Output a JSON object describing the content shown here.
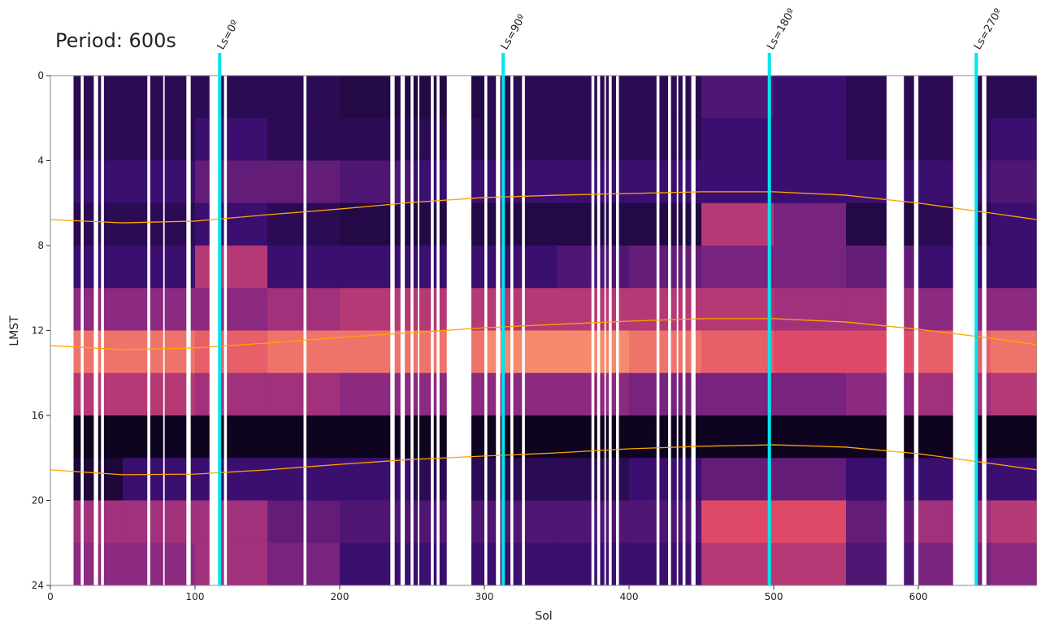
{
  "chart_data": {
    "type": "heatmap",
    "title": "Period: 600s",
    "xlabel": "Sol",
    "ylabel": "LMST",
    "xlim": [
      0,
      682
    ],
    "ylim": [
      0,
      24
    ],
    "y_inverted": true,
    "xticks": [
      0,
      100,
      200,
      300,
      400,
      500,
      600
    ],
    "yticks": [
      0,
      4,
      8,
      12,
      16,
      20,
      24
    ],
    "colormap": "magma",
    "x_bins": [
      0,
      50,
      100,
      150,
      200,
      250,
      300,
      350,
      400,
      450,
      500,
      550,
      600,
      650,
      682
    ],
    "y_bins": [
      0,
      2,
      4,
      6,
      8,
      10,
      12,
      14,
      16,
      18,
      20,
      22,
      24
    ],
    "z": [
      [
        0.15,
        0.15,
        0.15,
        0.15,
        0.12,
        0.12,
        0.15,
        0.15,
        0.15,
        0.25,
        0.2,
        0.15,
        0.15,
        0.15
      ],
      [
        0.15,
        0.15,
        0.2,
        0.15,
        0.15,
        0.15,
        0.15,
        0.15,
        0.15,
        0.2,
        0.2,
        0.15,
        0.15,
        0.2
      ],
      [
        0.2,
        0.2,
        0.3,
        0.3,
        0.25,
        0.2,
        0.2,
        0.2,
        0.2,
        0.2,
        0.2,
        0.2,
        0.2,
        0.25
      ],
      [
        0.15,
        0.15,
        0.2,
        0.15,
        0.12,
        0.12,
        0.12,
        0.12,
        0.12,
        0.5,
        0.35,
        0.12,
        0.15,
        0.2
      ],
      [
        0.2,
        0.2,
        0.5,
        0.2,
        0.2,
        0.2,
        0.2,
        0.25,
        0.3,
        0.35,
        0.35,
        0.3,
        0.2,
        0.2
      ],
      [
        0.4,
        0.4,
        0.4,
        0.45,
        0.5,
        0.5,
        0.5,
        0.5,
        0.5,
        0.5,
        0.45,
        0.45,
        0.4,
        0.4
      ],
      [
        0.7,
        0.7,
        0.65,
        0.7,
        0.7,
        0.7,
        0.75,
        0.75,
        0.7,
        0.65,
        0.6,
        0.6,
        0.65,
        0.7
      ],
      [
        0.5,
        0.5,
        0.45,
        0.45,
        0.4,
        0.4,
        0.4,
        0.4,
        0.35,
        0.35,
        0.35,
        0.4,
        0.45,
        0.5
      ],
      [
        0.05,
        0.05,
        0.05,
        0.05,
        0.05,
        0.05,
        0.05,
        0.05,
        0.05,
        0.05,
        0.05,
        0.05,
        0.05,
        0.05
      ],
      [
        0.1,
        0.2,
        0.2,
        0.2,
        0.2,
        0.15,
        0.15,
        0.15,
        0.2,
        0.3,
        0.3,
        0.2,
        0.2,
        0.2
      ],
      [
        0.45,
        0.45,
        0.45,
        0.3,
        0.25,
        0.25,
        0.25,
        0.25,
        0.25,
        0.6,
        0.6,
        0.3,
        0.45,
        0.5
      ],
      [
        0.4,
        0.4,
        0.45,
        0.35,
        0.2,
        0.2,
        0.2,
        0.2,
        0.2,
        0.5,
        0.5,
        0.25,
        0.35,
        0.4
      ]
    ],
    "gaps": [
      [
        0,
        16
      ],
      [
        21,
        23
      ],
      [
        30,
        33
      ],
      [
        35,
        37
      ],
      [
        67,
        69
      ],
      [
        78,
        79
      ],
      [
        94,
        97
      ],
      [
        110,
        116
      ],
      [
        120,
        122
      ],
      [
        175,
        177
      ],
      [
        235,
        238
      ],
      [
        242,
        245
      ],
      [
        249,
        251
      ],
      [
        254,
        255
      ],
      [
        263,
        265
      ],
      [
        267,
        269
      ],
      [
        274,
        291
      ],
      [
        300,
        302
      ],
      [
        308,
        311
      ],
      [
        318,
        320
      ],
      [
        326,
        328
      ],
      [
        374,
        376
      ],
      [
        378,
        380
      ],
      [
        383,
        384
      ],
      [
        386,
        388
      ],
      [
        391,
        393
      ],
      [
        419,
        421
      ],
      [
        427,
        429
      ],
      [
        433,
        434
      ],
      [
        437,
        439
      ],
      [
        443,
        446
      ],
      [
        578,
        590
      ],
      [
        597,
        600
      ],
      [
        624,
        639
      ],
      [
        644,
        647
      ]
    ],
    "curve_color": "#ffa500",
    "x": [
      0,
      50,
      100,
      150,
      200,
      250,
      300,
      350,
      400,
      450,
      500,
      550,
      600,
      650,
      682
    ],
    "series": [
      {
        "values": [
          6.78,
          6.93,
          6.85,
          6.55,
          6.28,
          5.97,
          5.74,
          5.63,
          5.55,
          5.47,
          5.47,
          5.63,
          6.0,
          6.47,
          6.78
        ]
      },
      {
        "values": [
          12.71,
          12.9,
          12.82,
          12.59,
          12.33,
          12.1,
          11.87,
          11.71,
          11.56,
          11.44,
          11.44,
          11.6,
          11.94,
          12.36,
          12.67
        ]
      },
      {
        "values": [
          18.56,
          18.79,
          18.76,
          18.56,
          18.3,
          18.07,
          17.91,
          17.76,
          17.57,
          17.45,
          17.38,
          17.49,
          17.8,
          18.26,
          18.56
        ]
      }
    ],
    "marker_color": "#00e5ee",
    "markers": [
      {
        "label": "Ls=0º",
        "x": 117
      },
      {
        "label": "Ls=90º",
        "x": 313
      },
      {
        "label": "Ls=180º",
        "x": 497
      },
      {
        "label": "Ls=270º",
        "x": 640
      }
    ]
  }
}
